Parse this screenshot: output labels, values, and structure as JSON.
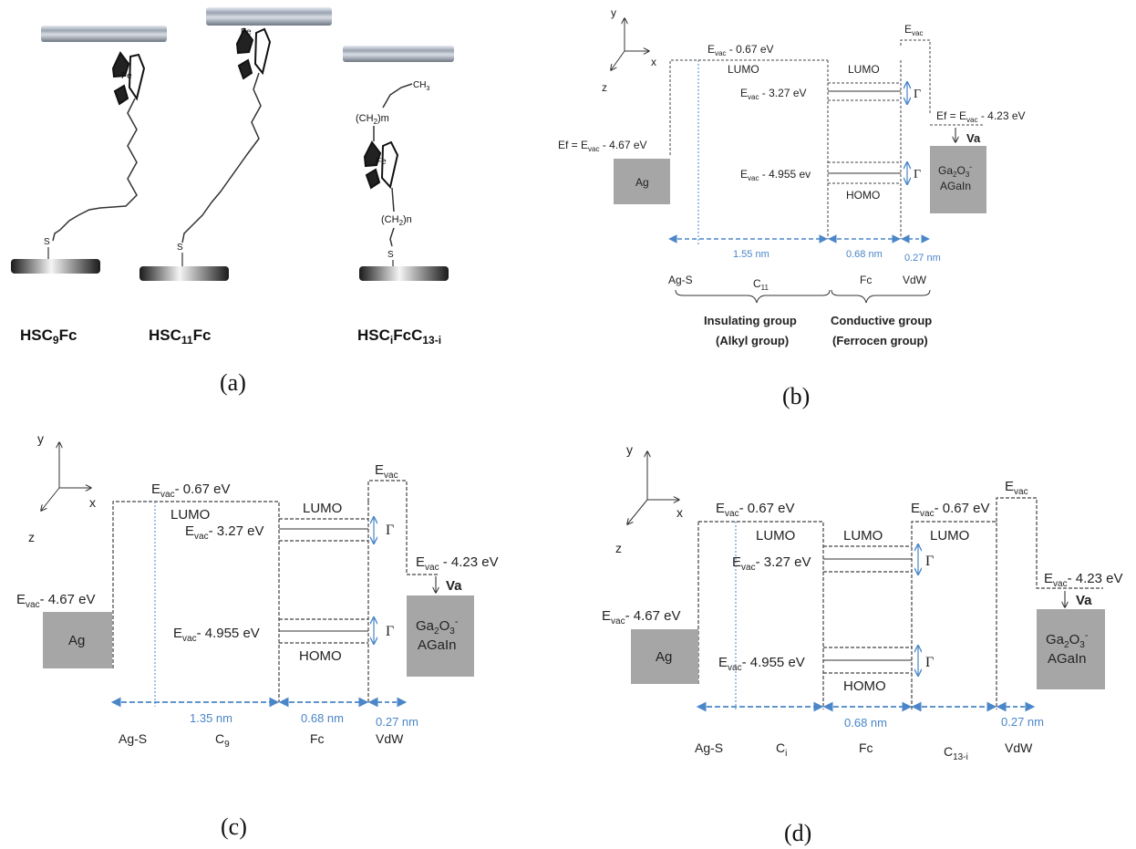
{
  "panel_a": {
    "caption": "(a)",
    "fe_label": "Fe",
    "s_label": "S",
    "ch3_label": "CH",
    "ch3_sub": "3",
    "ch2m_label": "(CH",
    "ch2m_sub": "2",
    "ch2m_tail": ")m",
    "ch2n_label": "(CH",
    "ch2n_sub": "2",
    "ch2n_tail": ")n",
    "labels": [
      {
        "pre": "HSC",
        "sub": "9",
        "post": "Fc",
        "sub2": "",
        "post2": ""
      },
      {
        "pre": "HSC",
        "sub": "11",
        "post": "Fc",
        "sub2": "",
        "post2": ""
      },
      {
        "pre": "HSC",
        "sub": "i",
        "post": "FcC",
        "sub2": "13-i",
        "post2": ""
      }
    ]
  },
  "panel_b": {
    "caption": "(b)",
    "axes": {
      "y": "y",
      "x": "x",
      "z": "z"
    },
    "evac": "E",
    "evac_sub": "vac",
    "lumo_level": " - 0.67 eV",
    "lumo1": "LUMO",
    "lumo2": "LUMO",
    "level_327": " - 3.27 eV",
    "level_4955": " - 4.955 ev",
    "homo": "HOMO",
    "ef_left_pre": "Ef =  E",
    "ef_left_post": " - 4.67 eV",
    "ef_right_pre": "Ef = E",
    "ef_right_post": " - 4.23 eV",
    "gamma": "Γ",
    "va": "Va",
    "ag": "Ag",
    "gao_line1_pre": "Ga",
    "gao_sub1": "2",
    "gao_mid": "O",
    "gao_sub2": "3",
    "gao_sup": "-",
    "gao_line2": "AGaIn",
    "dist1": "1.55 nm",
    "dist2": "0.68 nm",
    "dist3": "0.27 nm",
    "bottom": {
      "ag_s": "Ag-S",
      "c": "C",
      "c_sub": "11",
      "fc": "Fc",
      "vdw": "VdW"
    },
    "group1_line1": "Insulating group",
    "group1_line2": "(Alkyl group)",
    "group2_line1": "Conductive group",
    "group2_line2": "(Ferrocen group)"
  },
  "panel_c": {
    "caption": "(c)",
    "axes": {
      "y": "y",
      "x": "x",
      "z": "z"
    },
    "evac": "E",
    "evac_sub": "vac",
    "lumo_level": "- 0.67 eV",
    "lumo1": "LUMO",
    "lumo2": "LUMO",
    "level_327": "- 3.27 eV",
    "level_4955": "- 4.955 eV",
    "homo": "HOMO",
    "left_post": "- 4.67 eV",
    "right_post": " - 4.23 eV",
    "gamma": "Γ",
    "va": "Va",
    "ag": "Ag",
    "gao_line2": "AGaIn",
    "dist1": "1.35 nm",
    "dist2": "0.68 nm",
    "dist3": "0.27 nm",
    "bottom": {
      "ag_s": "Ag-S",
      "c": "C",
      "c_sub": "9",
      "fc": "Fc",
      "vdw": "VdW"
    }
  },
  "panel_d": {
    "caption": "(d)",
    "axes": {
      "y": "y",
      "x": "x",
      "z": "z"
    },
    "evac": "E",
    "evac_sub": "vac",
    "lumo_level": "- 0.67 eV",
    "lumo_level2": "- 0.67 eV",
    "lumo1": "LUMO",
    "lumo2": "LUMO",
    "lumo3": "LUMO",
    "level_327": "- 3.27 eV",
    "level_4955": "- 4.955 eV",
    "homo": "HOMO",
    "left_post": "- 4.67 eV",
    "right_post": "- 4.23 eV",
    "gamma": "Γ",
    "va": "Va",
    "ag": "Ag",
    "gao_line2": "AGaIn",
    "dist2": "0.68 nm",
    "dist3": "0.27 nm",
    "bottom": {
      "ag_s": "Ag-S",
      "c": "C",
      "c_sub": "i",
      "fc": "Fc",
      "c2": "C",
      "c2_sub": "13-i",
      "vdw": "VdW"
    }
  },
  "colors": {
    "blue": "#4a86c8",
    "grey_block": "#a6a6a6",
    "dash": "#444444"
  }
}
